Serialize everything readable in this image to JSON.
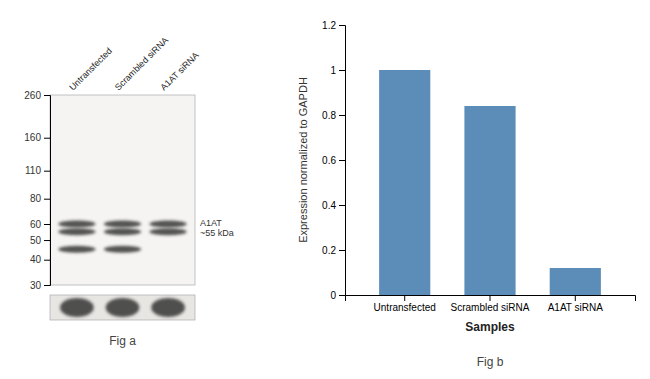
{
  "chart_data": [
    {
      "type": "blot",
      "title": "Fig a",
      "categories": [
        "Untransfected",
        "Scrambled siRNA",
        "A1AT siRNA"
      ],
      "series": [
        {
          "values": [
            60,
            60,
            60
          ]
        },
        {
          "values": [
            55,
            55,
            55
          ]
        },
        {
          "values": [
            45,
            45,
            null
          ]
        }
      ],
      "log": "y",
      "ylim": [
        30,
        260
      ],
      "yticks": [
        260,
        160,
        110,
        80,
        60,
        50,
        40,
        30
      ],
      "annotation": "A1AT\n~55 kDa"
    },
    {
      "type": "bar",
      "title": "Fig b",
      "categories": [
        "Untransfected",
        "Scrambled siRNA",
        "A1AT siRNA"
      ],
      "values": [
        1.0,
        0.84,
        0.12
      ],
      "color": "#5b8db8",
      "xlabel": "Samples",
      "ylabel": "Expression normalized to GAPDH",
      "ylim": [
        0,
        1.2
      ],
      "yticks": [
        0,
        0.2,
        0.4,
        0.6,
        0.8,
        1.0,
        1.2
      ]
    }
  ]
}
